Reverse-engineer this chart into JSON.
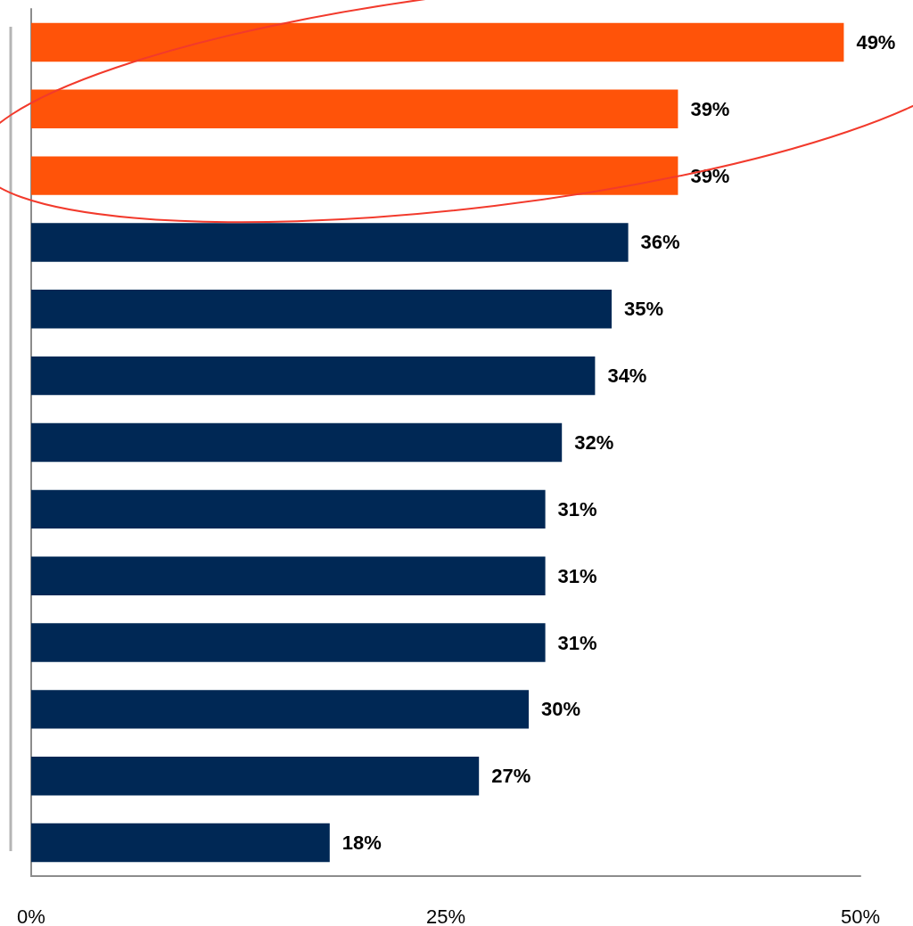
{
  "chart_data": {
    "type": "bar",
    "orientation": "horizontal",
    "categories": [
      null,
      null,
      null,
      null,
      null,
      null,
      null,
      null,
      null,
      null,
      null,
      null,
      null
    ],
    "values": [
      49,
      39,
      39,
      36,
      35,
      34,
      32,
      31,
      31,
      31,
      30,
      27,
      18
    ],
    "colors": [
      "#ff5309",
      "#ff5309",
      "#ff5309",
      "#002855",
      "#002855",
      "#002855",
      "#002855",
      "#002855",
      "#002855",
      "#002855",
      "#002855",
      "#002855",
      "#002855"
    ],
    "value_labels": [
      "49%",
      "39%",
      "39%",
      "36%",
      "35%",
      "34%",
      "32%",
      "31%",
      "31%",
      "31%",
      "30%",
      "27%",
      "18%"
    ],
    "xlim": [
      0,
      50
    ],
    "xticks": [
      {
        "value": 0,
        "label": "0%"
      },
      {
        "value": 25,
        "label": "25%"
      },
      {
        "value": 50,
        "label": "50%"
      }
    ],
    "tick_labels": "x",
    "grid": false
  }
}
